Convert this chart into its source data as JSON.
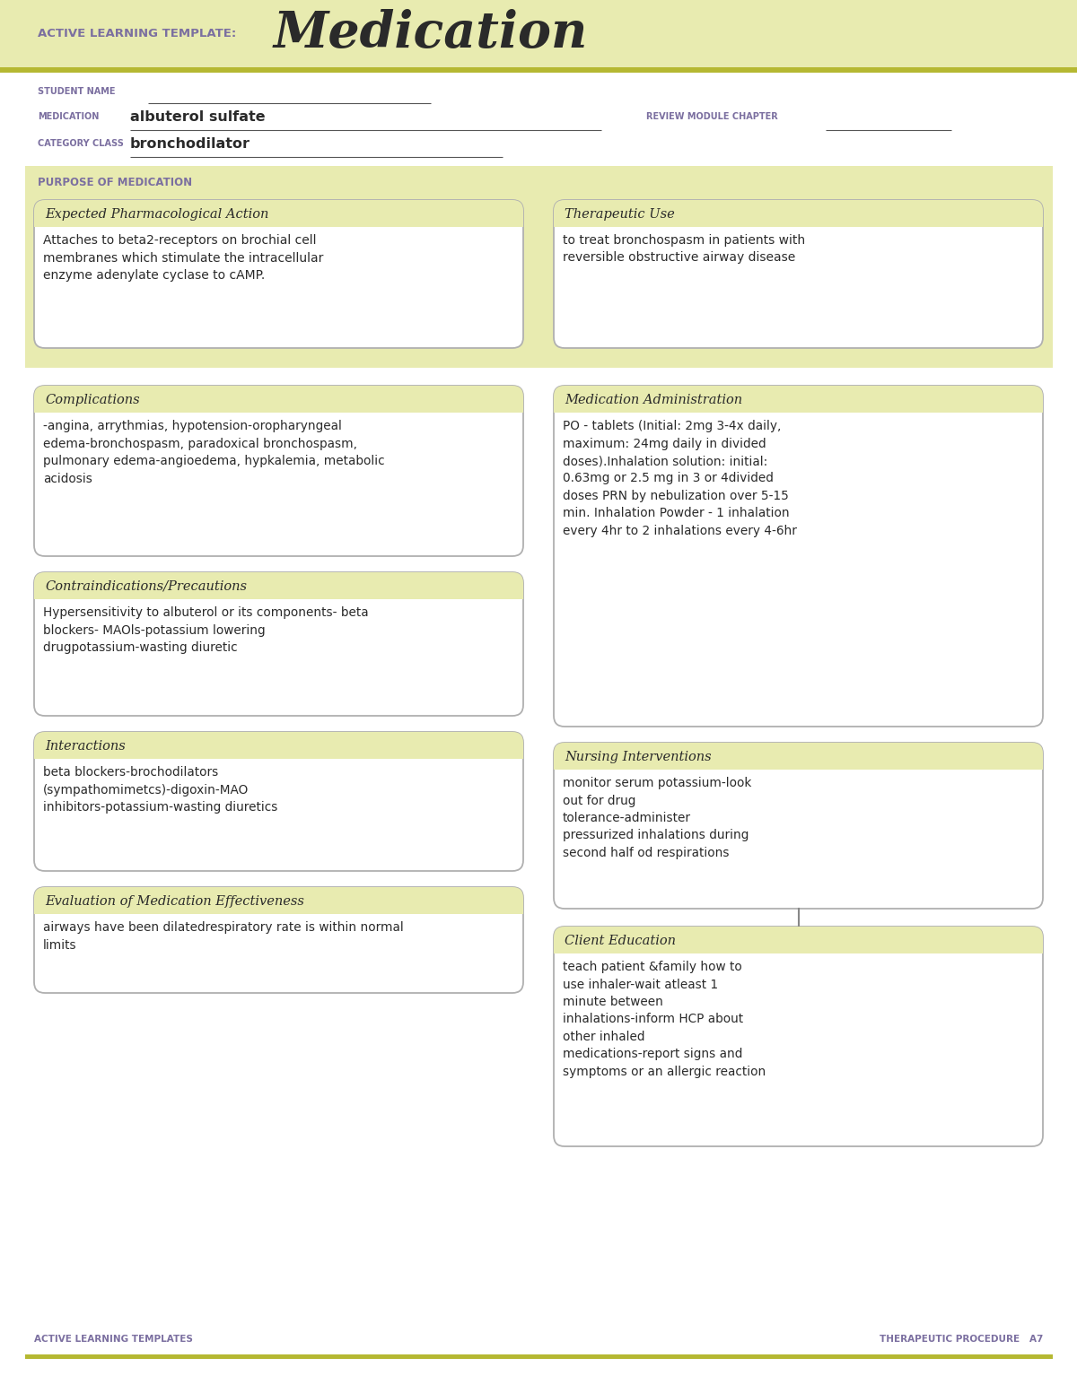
{
  "bg_color": "#f5f5dc",
  "white": "#ffffff",
  "header_bg": "#e8ebb0",
  "olive_line": "#b5b832",
  "purple_label": "#7b6fa0",
  "dark_text": "#2a2a2a",
  "gray_box_border": "#b0b0b0",
  "section_bg": "#e8ebb0",
  "title_label": "ACTIVE LEARNING TEMPLATE:",
  "title_main": "Medication",
  "student_name_label": "STUDENT NAME",
  "medication_label": "MEDICATION",
  "medication_value": "albuterol sulfate",
  "review_label": "REVIEW MODULE CHAPTER",
  "category_label": "CATEGORY CLASS",
  "category_value": "bronchodilator",
  "purpose_label": "PURPOSE OF MEDICATION",
  "box1_title": "Expected Pharmacological Action",
  "box1_text": "Attaches to beta2-receptors on brochial cell\nmembranes which stimulate the intracellular\nenzyme adenylate cyclase to cAMP.",
  "box2_title": "Therapeutic Use",
  "box2_text": "to treat bronchospasm in patients with\nreversible obstructive airway disease",
  "box3_title": "Complications",
  "box3_text": "-angina, arrythmias, hypotension-oropharyngeal\nedema-bronchospasm, paradoxical bronchospasm,\npulmonary edema-angioedema, hypkalemia, metabolic\nacidosis",
  "box4_title": "Medication Administration",
  "box4_text": "PO - tablets (Initial: 2mg 3-4x daily,\nmaximum: 24mg daily in divided\ndoses).Inhalation solution: initial:\n0.63mg or 2.5 mg in 3 or 4divided\ndoses PRN by nebulization over 5-15\nmin. Inhalation Powder - 1 inhalation\nevery 4hr to 2 inhalations every 4-6hr",
  "box5_title": "Contraindications/Precautions",
  "box5_text": "Hypersensitivity to albuterol or its components- beta\nblockers- MAOls-potassium lowering\ndrugpotassium-wasting diuretic",
  "box6_title": "Nursing Interventions",
  "box6_text": "monitor serum potassium-look\nout for drug\ntolerance-administer\npressurized inhalations during\nsecond half od respirations",
  "box7_title": "Interactions",
  "box7_text": "beta blockers-brochodilators\n(sympathomimetcs)-digoxin-MAO\ninhibitors-potassium-wasting diuretics",
  "box8_title": "Client Education",
  "box8_text": "teach patient &family how to\nuse inhaler-wait atleast 1\nminute between\ninhalations-inform HCP about\nother inhaled\nmedications-report signs and\nsymptoms or an allergic reaction",
  "box9_title": "Evaluation of Medication Effectiveness",
  "box9_text": "airways have been dilatedrespiratory rate is within normal\nlimits",
  "footer_left": "ACTIVE LEARNING TEMPLATES",
  "footer_right": "THERAPEUTIC PROCEDURE   A7"
}
